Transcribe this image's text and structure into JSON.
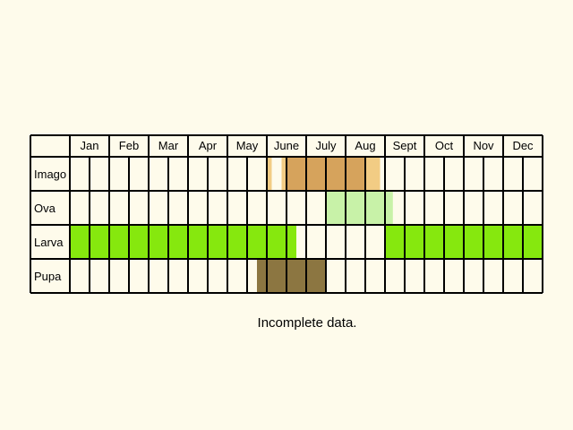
{
  "chart_data": {
    "type": "table",
    "title": "",
    "months": [
      "Jan",
      "Feb",
      "Mar",
      "Apr",
      "May",
      "June",
      "July",
      "Aug",
      "Sept",
      "Oct",
      "Nov",
      "Dec"
    ],
    "columns_per_month": 2,
    "stages": [
      {
        "label": "Imago",
        "color": "#d6a35c",
        "light_color": "#f2cc84",
        "spans": [
          {
            "start": 10.0,
            "end": 10.25,
            "tone": "light"
          },
          {
            "start": 10.75,
            "end": 11.0,
            "tone": "light"
          },
          {
            "start": 11.0,
            "end": 15.0,
            "tone": "dark"
          },
          {
            "start": 15.0,
            "end": 15.75,
            "tone": "light"
          }
        ]
      },
      {
        "label": "Ova",
        "color": "#c8f2a8",
        "light_color": "#c8f2a8",
        "spans": [
          {
            "start": 13.0,
            "end": 16.4,
            "tone": "dark"
          }
        ]
      },
      {
        "label": "Larva",
        "color": "#86e80e",
        "light_color": "#86e80e",
        "spans": [
          {
            "start": 0.0,
            "end": 11.5,
            "tone": "dark"
          },
          {
            "start": 16.0,
            "end": 24.0,
            "tone": "dark"
          }
        ]
      },
      {
        "label": "Pupa",
        "color": "#8c7641",
        "light_color": "#8c7641",
        "spans": [
          {
            "start": 9.5,
            "end": 13.0,
            "tone": "dark"
          }
        ]
      }
    ],
    "note": "Incomplete data."
  }
}
